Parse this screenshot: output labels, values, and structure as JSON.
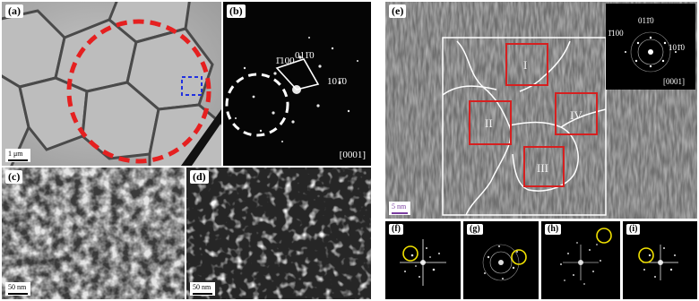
{
  "figure": {
    "panels": {
      "a": {
        "label": "(a)",
        "scale_bar": "1 μm"
      },
      "b": {
        "label": "(b)",
        "indices": [
          "1̄100",
          "011̄0",
          "101̄0"
        ],
        "zone_axis": "[0001]"
      },
      "c": {
        "label": "(c)",
        "scale_bar": "50 nm"
      },
      "d": {
        "label": "(d)",
        "scale_bar": "50 nm"
      },
      "e": {
        "label": "(e)",
        "scale_bar": "5 nm",
        "regions": [
          "I",
          "II",
          "III",
          "IV"
        ],
        "inset_indices": [
          "1̄100",
          "011̄0",
          "101̄0"
        ],
        "inset_zone_axis": "[0001]"
      },
      "f": {
        "label": "(f)"
      },
      "g": {
        "label": "(g)"
      },
      "h": {
        "label": "(h)"
      },
      "i": {
        "label": "(i)"
      }
    },
    "colors": {
      "red_circle": "#e52020",
      "blue_box": "#2030e0",
      "yellow_circle": "#f2e200",
      "region_box": "#d62020",
      "scale_bar_e": "#7b3fa0"
    }
  }
}
